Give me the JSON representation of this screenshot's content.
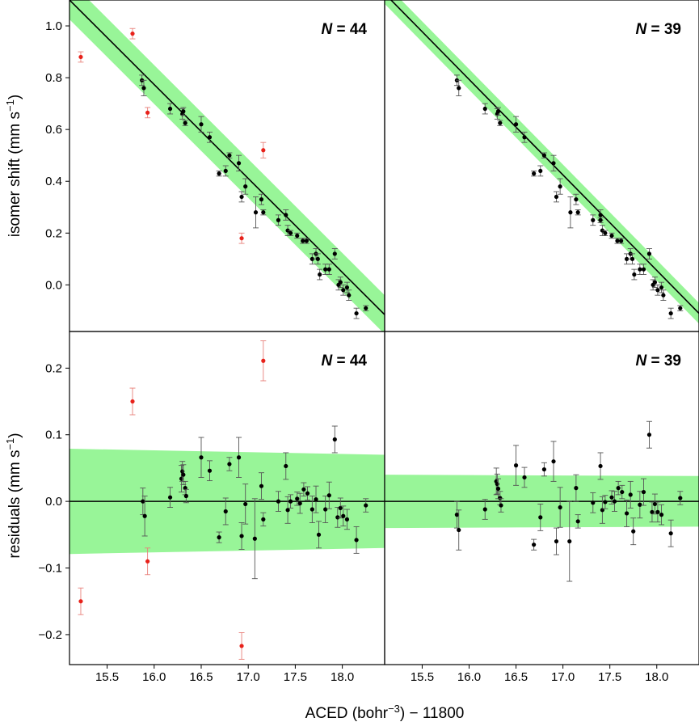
{
  "chart_data": [
    {
      "type": "scatter",
      "panel": "top-left",
      "n_label": {
        "symbol": "N",
        "text": " = 44"
      },
      "ylabel": "isomer shift (mm s",
      "ylabel_sup": "−1",
      "ylabel_close": ")",
      "ylim": [
        -0.18,
        1.1
      ],
      "xlim": [
        15.1,
        18.45
      ],
      "yticks": [
        "1.0",
        "0.8",
        "0.6",
        "0.4",
        "0.2",
        "0.0"
      ],
      "fit_line": {
        "x": [
          15.1,
          18.45
        ],
        "y": [
          1.1,
          -0.115
        ]
      },
      "band_halfwidth": 0.075,
      "colors": {
        "points": "#000000",
        "outliers": "#e8211a",
        "band": "#98f598",
        "line": "#000000"
      },
      "points": [
        {
          "x": 15.87,
          "y": 0.79,
          "err": 0.02
        },
        {
          "x": 15.89,
          "y": 0.76,
          "err": 0.03
        },
        {
          "x": 16.17,
          "y": 0.68,
          "err": 0.02
        },
        {
          "x": 16.3,
          "y": 0.66,
          "err": 0.02
        },
        {
          "x": 16.31,
          "y": 0.67,
          "err": 0.015
        },
        {
          "x": 16.33,
          "y": 0.625,
          "err": 0.01
        },
        {
          "x": 16.5,
          "y": 0.62,
          "err": 0.03
        },
        {
          "x": 16.59,
          "y": 0.57,
          "err": 0.02
        },
        {
          "x": 16.69,
          "y": 0.43,
          "err": 0.01
        },
        {
          "x": 16.76,
          "y": 0.44,
          "err": 0.02
        },
        {
          "x": 16.8,
          "y": 0.5,
          "err": 0.01
        },
        {
          "x": 16.9,
          "y": 0.47,
          "err": 0.03
        },
        {
          "x": 16.93,
          "y": 0.34,
          "err": 0.02
        },
        {
          "x": 16.97,
          "y": 0.38,
          "err": 0.03
        },
        {
          "x": 17.08,
          "y": 0.28,
          "err": 0.06
        },
        {
          "x": 17.14,
          "y": 0.33,
          "err": 0.02
        },
        {
          "x": 17.16,
          "y": 0.28,
          "err": 0.01
        },
        {
          "x": 17.32,
          "y": 0.25,
          "err": 0.02
        },
        {
          "x": 17.4,
          "y": 0.27,
          "err": 0.02
        },
        {
          "x": 17.42,
          "y": 0.21,
          "err": 0.02
        },
        {
          "x": 17.45,
          "y": 0.2,
          "err": 0.01
        },
        {
          "x": 17.52,
          "y": 0.19,
          "err": 0.01
        },
        {
          "x": 17.58,
          "y": 0.17,
          "err": 0.01
        },
        {
          "x": 17.62,
          "y": 0.17,
          "err": 0.01
        },
        {
          "x": 17.68,
          "y": 0.1,
          "err": 0.02
        },
        {
          "x": 17.72,
          "y": 0.12,
          "err": 0.02
        },
        {
          "x": 17.74,
          "y": 0.1,
          "err": 0.02
        },
        {
          "x": 17.76,
          "y": 0.04,
          "err": 0.02
        },
        {
          "x": 17.82,
          "y": 0.06,
          "err": 0.02
        },
        {
          "x": 17.86,
          "y": 0.06,
          "err": 0.02
        },
        {
          "x": 17.92,
          "y": 0.12,
          "err": 0.02
        },
        {
          "x": 17.96,
          "y": 0.0,
          "err": 0.02
        },
        {
          "x": 17.98,
          "y": 0.01,
          "err": 0.02
        },
        {
          "x": 18.01,
          "y": -0.02,
          "err": 0.02
        },
        {
          "x": 18.05,
          "y": -0.01,
          "err": 0.02
        },
        {
          "x": 18.07,
          "y": -0.04,
          "err": 0.02
        },
        {
          "x": 18.15,
          "y": -0.11,
          "err": 0.02
        },
        {
          "x": 18.25,
          "y": -0.09,
          "err": 0.01
        },
        {
          "x": 15.22,
          "y": 0.88,
          "err": 0.02,
          "outlier": true
        },
        {
          "x": 15.77,
          "y": 0.97,
          "err": 0.02,
          "outlier": true
        },
        {
          "x": 15.93,
          "y": 0.665,
          "err": 0.02,
          "outlier": true
        },
        {
          "x": 16.93,
          "y": 0.18,
          "err": 0.02,
          "outlier": true
        },
        {
          "x": 17.16,
          "y": 0.52,
          "err": 0.03,
          "outlier": true
        }
      ]
    },
    {
      "type": "scatter",
      "panel": "top-right",
      "n_label": {
        "symbol": "N",
        "text": " = 39"
      },
      "ylim": [
        -0.18,
        1.1
      ],
      "xlim": [
        15.1,
        18.45
      ],
      "fit_line": {
        "x": [
          15.1,
          18.45
        ],
        "y": [
          1.125,
          -0.11
        ]
      },
      "band_halfwidth": 0.04,
      "points": [
        {
          "x": 15.87,
          "y": 0.79,
          "err": 0.02
        },
        {
          "x": 15.89,
          "y": 0.76,
          "err": 0.03
        },
        {
          "x": 16.17,
          "y": 0.68,
          "err": 0.02
        },
        {
          "x": 16.3,
          "y": 0.66,
          "err": 0.02
        },
        {
          "x": 16.31,
          "y": 0.67,
          "err": 0.015
        },
        {
          "x": 16.33,
          "y": 0.625,
          "err": 0.01
        },
        {
          "x": 16.5,
          "y": 0.62,
          "err": 0.03
        },
        {
          "x": 16.59,
          "y": 0.57,
          "err": 0.02
        },
        {
          "x": 16.69,
          "y": 0.43,
          "err": 0.01
        },
        {
          "x": 16.76,
          "y": 0.44,
          "err": 0.02
        },
        {
          "x": 16.8,
          "y": 0.5,
          "err": 0.01
        },
        {
          "x": 16.9,
          "y": 0.47,
          "err": 0.03
        },
        {
          "x": 16.93,
          "y": 0.34,
          "err": 0.02
        },
        {
          "x": 16.97,
          "y": 0.38,
          "err": 0.03
        },
        {
          "x": 17.08,
          "y": 0.28,
          "err": 0.06
        },
        {
          "x": 17.14,
          "y": 0.33,
          "err": 0.02
        },
        {
          "x": 17.16,
          "y": 0.28,
          "err": 0.01
        },
        {
          "x": 17.32,
          "y": 0.25,
          "err": 0.02
        },
        {
          "x": 17.4,
          "y": 0.27,
          "err": 0.02
        },
        {
          "x": 17.42,
          "y": 0.21,
          "err": 0.02
        },
        {
          "x": 17.45,
          "y": 0.2,
          "err": 0.01
        },
        {
          "x": 17.52,
          "y": 0.19,
          "err": 0.01
        },
        {
          "x": 17.58,
          "y": 0.17,
          "err": 0.01
        },
        {
          "x": 17.62,
          "y": 0.17,
          "err": 0.01
        },
        {
          "x": 17.68,
          "y": 0.1,
          "err": 0.02
        },
        {
          "x": 17.72,
          "y": 0.12,
          "err": 0.02
        },
        {
          "x": 17.74,
          "y": 0.1,
          "err": 0.02
        },
        {
          "x": 17.76,
          "y": 0.04,
          "err": 0.02
        },
        {
          "x": 17.82,
          "y": 0.06,
          "err": 0.02
        },
        {
          "x": 17.86,
          "y": 0.06,
          "err": 0.02
        },
        {
          "x": 17.92,
          "y": 0.12,
          "err": 0.02
        },
        {
          "x": 17.96,
          "y": 0.0,
          "err": 0.02
        },
        {
          "x": 17.98,
          "y": 0.01,
          "err": 0.02
        },
        {
          "x": 18.01,
          "y": -0.02,
          "err": 0.02
        },
        {
          "x": 18.05,
          "y": -0.01,
          "err": 0.02
        },
        {
          "x": 18.07,
          "y": -0.04,
          "err": 0.02
        },
        {
          "x": 18.15,
          "y": -0.11,
          "err": 0.02
        },
        {
          "x": 18.25,
          "y": -0.09,
          "err": 0.01
        },
        {
          "x": 17.4,
          "y": 0.25,
          "err": 0.01
        }
      ]
    },
    {
      "type": "scatter",
      "panel": "bottom-left",
      "n_label": {
        "symbol": "N",
        "text": " = 44"
      },
      "ylabel": "residuals (mm s",
      "ylabel_sup": "−1",
      "ylabel_close": ")",
      "ylim": [
        -0.245,
        0.255
      ],
      "xlim": [
        15.1,
        18.45
      ],
      "yticks": [
        "0.2",
        "0.1",
        "0.0",
        "−0.1",
        "−0.2"
      ],
      "xticks": [
        "15.5",
        "16.0",
        "16.5",
        "17.0",
        "17.5",
        "18.0"
      ],
      "zero_line": 0.0,
      "band": {
        "x": [
          15.1,
          18.45
        ],
        "upper": [
          0.079,
          0.07
        ],
        "lower": [
          -0.079,
          -0.07
        ]
      },
      "points": [
        {
          "x": 15.88,
          "y": 0.0,
          "err": 0.02
        },
        {
          "x": 15.9,
          "y": -0.022,
          "err": 0.03
        },
        {
          "x": 16.17,
          "y": 0.006,
          "err": 0.015
        },
        {
          "x": 16.29,
          "y": 0.034,
          "err": 0.02
        },
        {
          "x": 16.3,
          "y": 0.045,
          "err": 0.015
        },
        {
          "x": 16.31,
          "y": 0.04,
          "err": 0.015
        },
        {
          "x": 16.33,
          "y": 0.02,
          "err": 0.01
        },
        {
          "x": 16.34,
          "y": 0.008,
          "err": 0.01
        },
        {
          "x": 16.5,
          "y": 0.066,
          "err": 0.03
        },
        {
          "x": 16.59,
          "y": 0.046,
          "err": 0.015
        },
        {
          "x": 16.69,
          "y": -0.054,
          "err": 0.008
        },
        {
          "x": 16.76,
          "y": -0.015,
          "err": 0.02
        },
        {
          "x": 16.8,
          "y": 0.056,
          "err": 0.01
        },
        {
          "x": 16.9,
          "y": 0.066,
          "err": 0.03
        },
        {
          "x": 16.93,
          "y": -0.052,
          "err": 0.02
        },
        {
          "x": 16.97,
          "y": -0.004,
          "err": 0.03
        },
        {
          "x": 17.07,
          "y": -0.056,
          "err": 0.06
        },
        {
          "x": 17.14,
          "y": 0.023,
          "err": 0.02
        },
        {
          "x": 17.16,
          "y": -0.027,
          "err": 0.01
        },
        {
          "x": 17.32,
          "y": 0.0,
          "err": 0.015
        },
        {
          "x": 17.4,
          "y": 0.053,
          "err": 0.02
        },
        {
          "x": 17.42,
          "y": -0.013,
          "err": 0.02
        },
        {
          "x": 17.45,
          "y": 0.0,
          "err": 0.01
        },
        {
          "x": 17.52,
          "y": 0.004,
          "err": 0.01
        },
        {
          "x": 17.55,
          "y": -0.003,
          "err": 0.015
        },
        {
          "x": 17.59,
          "y": 0.018,
          "err": 0.01
        },
        {
          "x": 17.63,
          "y": 0.012,
          "err": 0.01
        },
        {
          "x": 17.68,
          "y": -0.012,
          "err": 0.02
        },
        {
          "x": 17.72,
          "y": 0.003,
          "err": 0.02
        },
        {
          "x": 17.75,
          "y": -0.05,
          "err": 0.02
        },
        {
          "x": 17.82,
          "y": -0.012,
          "err": 0.02
        },
        {
          "x": 17.86,
          "y": 0.009,
          "err": 0.02
        },
        {
          "x": 17.92,
          "y": 0.093,
          "err": 0.02
        },
        {
          "x": 17.95,
          "y": -0.024,
          "err": 0.015
        },
        {
          "x": 17.98,
          "y": -0.01,
          "err": 0.015
        },
        {
          "x": 18.01,
          "y": -0.022,
          "err": 0.015
        },
        {
          "x": 18.05,
          "y": -0.027,
          "err": 0.015
        },
        {
          "x": 18.15,
          "y": -0.058,
          "err": 0.02
        },
        {
          "x": 18.25,
          "y": -0.006,
          "err": 0.01
        },
        {
          "x": 15.22,
          "y": -0.15,
          "err": 0.02,
          "outlier": true
        },
        {
          "x": 15.77,
          "y": 0.15,
          "err": 0.02,
          "outlier": true
        },
        {
          "x": 15.93,
          "y": -0.09,
          "err": 0.02,
          "outlier": true
        },
        {
          "x": 16.93,
          "y": -0.217,
          "err": 0.02,
          "outlier": true
        },
        {
          "x": 17.16,
          "y": 0.211,
          "err": 0.03,
          "outlier": true
        }
      ]
    },
    {
      "type": "scatter",
      "panel": "bottom-right",
      "n_label": {
        "symbol": "N",
        "text": " = 39"
      },
      "ylim": [
        -0.245,
        0.255
      ],
      "xlim": [
        15.1,
        18.45
      ],
      "xticks": [
        "15.5",
        "16.0",
        "16.5",
        "17.0",
        "17.5",
        "18.0"
      ],
      "zero_line": 0.0,
      "band": {
        "x": [
          15.1,
          18.45
        ],
        "upper": [
          0.04,
          0.038
        ],
        "lower": [
          -0.04,
          -0.038
        ]
      },
      "points": [
        {
          "x": 15.87,
          "y": -0.02,
          "err": 0.02
        },
        {
          "x": 15.89,
          "y": -0.043,
          "err": 0.03
        },
        {
          "x": 16.17,
          "y": -0.012,
          "err": 0.015
        },
        {
          "x": 16.29,
          "y": 0.03,
          "err": 0.02
        },
        {
          "x": 16.3,
          "y": 0.026,
          "err": 0.015
        },
        {
          "x": 16.31,
          "y": 0.019,
          "err": 0.015
        },
        {
          "x": 16.33,
          "y": 0.005,
          "err": 0.01
        },
        {
          "x": 16.34,
          "y": -0.006,
          "err": 0.01
        },
        {
          "x": 16.5,
          "y": 0.054,
          "err": 0.03
        },
        {
          "x": 16.59,
          "y": 0.036,
          "err": 0.015
        },
        {
          "x": 16.69,
          "y": -0.065,
          "err": 0.008
        },
        {
          "x": 16.76,
          "y": -0.024,
          "err": 0.02
        },
        {
          "x": 16.8,
          "y": 0.048,
          "err": 0.01
        },
        {
          "x": 16.9,
          "y": 0.06,
          "err": 0.03
        },
        {
          "x": 16.93,
          "y": -0.06,
          "err": 0.02
        },
        {
          "x": 16.97,
          "y": -0.009,
          "err": 0.03
        },
        {
          "x": 17.07,
          "y": -0.06,
          "err": 0.06
        },
        {
          "x": 17.14,
          "y": 0.02,
          "err": 0.02
        },
        {
          "x": 17.16,
          "y": -0.03,
          "err": 0.01
        },
        {
          "x": 17.32,
          "y": -0.002,
          "err": 0.015
        },
        {
          "x": 17.4,
          "y": 0.053,
          "err": 0.02
        },
        {
          "x": 17.42,
          "y": -0.013,
          "err": 0.02
        },
        {
          "x": 17.45,
          "y": -0.001,
          "err": 0.01
        },
        {
          "x": 17.52,
          "y": 0.006,
          "err": 0.01
        },
        {
          "x": 17.55,
          "y": 0.0,
          "err": 0.015
        },
        {
          "x": 17.59,
          "y": 0.02,
          "err": 0.01
        },
        {
          "x": 17.63,
          "y": 0.014,
          "err": 0.01
        },
        {
          "x": 17.68,
          "y": -0.018,
          "err": 0.02
        },
        {
          "x": 17.72,
          "y": 0.01,
          "err": 0.02
        },
        {
          "x": 17.75,
          "y": -0.045,
          "err": 0.02
        },
        {
          "x": 17.82,
          "y": -0.005,
          "err": 0.02
        },
        {
          "x": 17.86,
          "y": 0.014,
          "err": 0.02
        },
        {
          "x": 17.92,
          "y": 0.1,
          "err": 0.02
        },
        {
          "x": 17.95,
          "y": -0.016,
          "err": 0.015
        },
        {
          "x": 17.98,
          "y": -0.004,
          "err": 0.015
        },
        {
          "x": 18.01,
          "y": -0.016,
          "err": 0.015
        },
        {
          "x": 18.05,
          "y": -0.02,
          "err": 0.015
        },
        {
          "x": 18.15,
          "y": -0.048,
          "err": 0.02
        },
        {
          "x": 18.25,
          "y": 0.005,
          "err": 0.01
        }
      ]
    }
  ],
  "xlabel_parts": {
    "pre": "ACED (bohr",
    "sup": "−3",
    "post": ") − 11800"
  }
}
